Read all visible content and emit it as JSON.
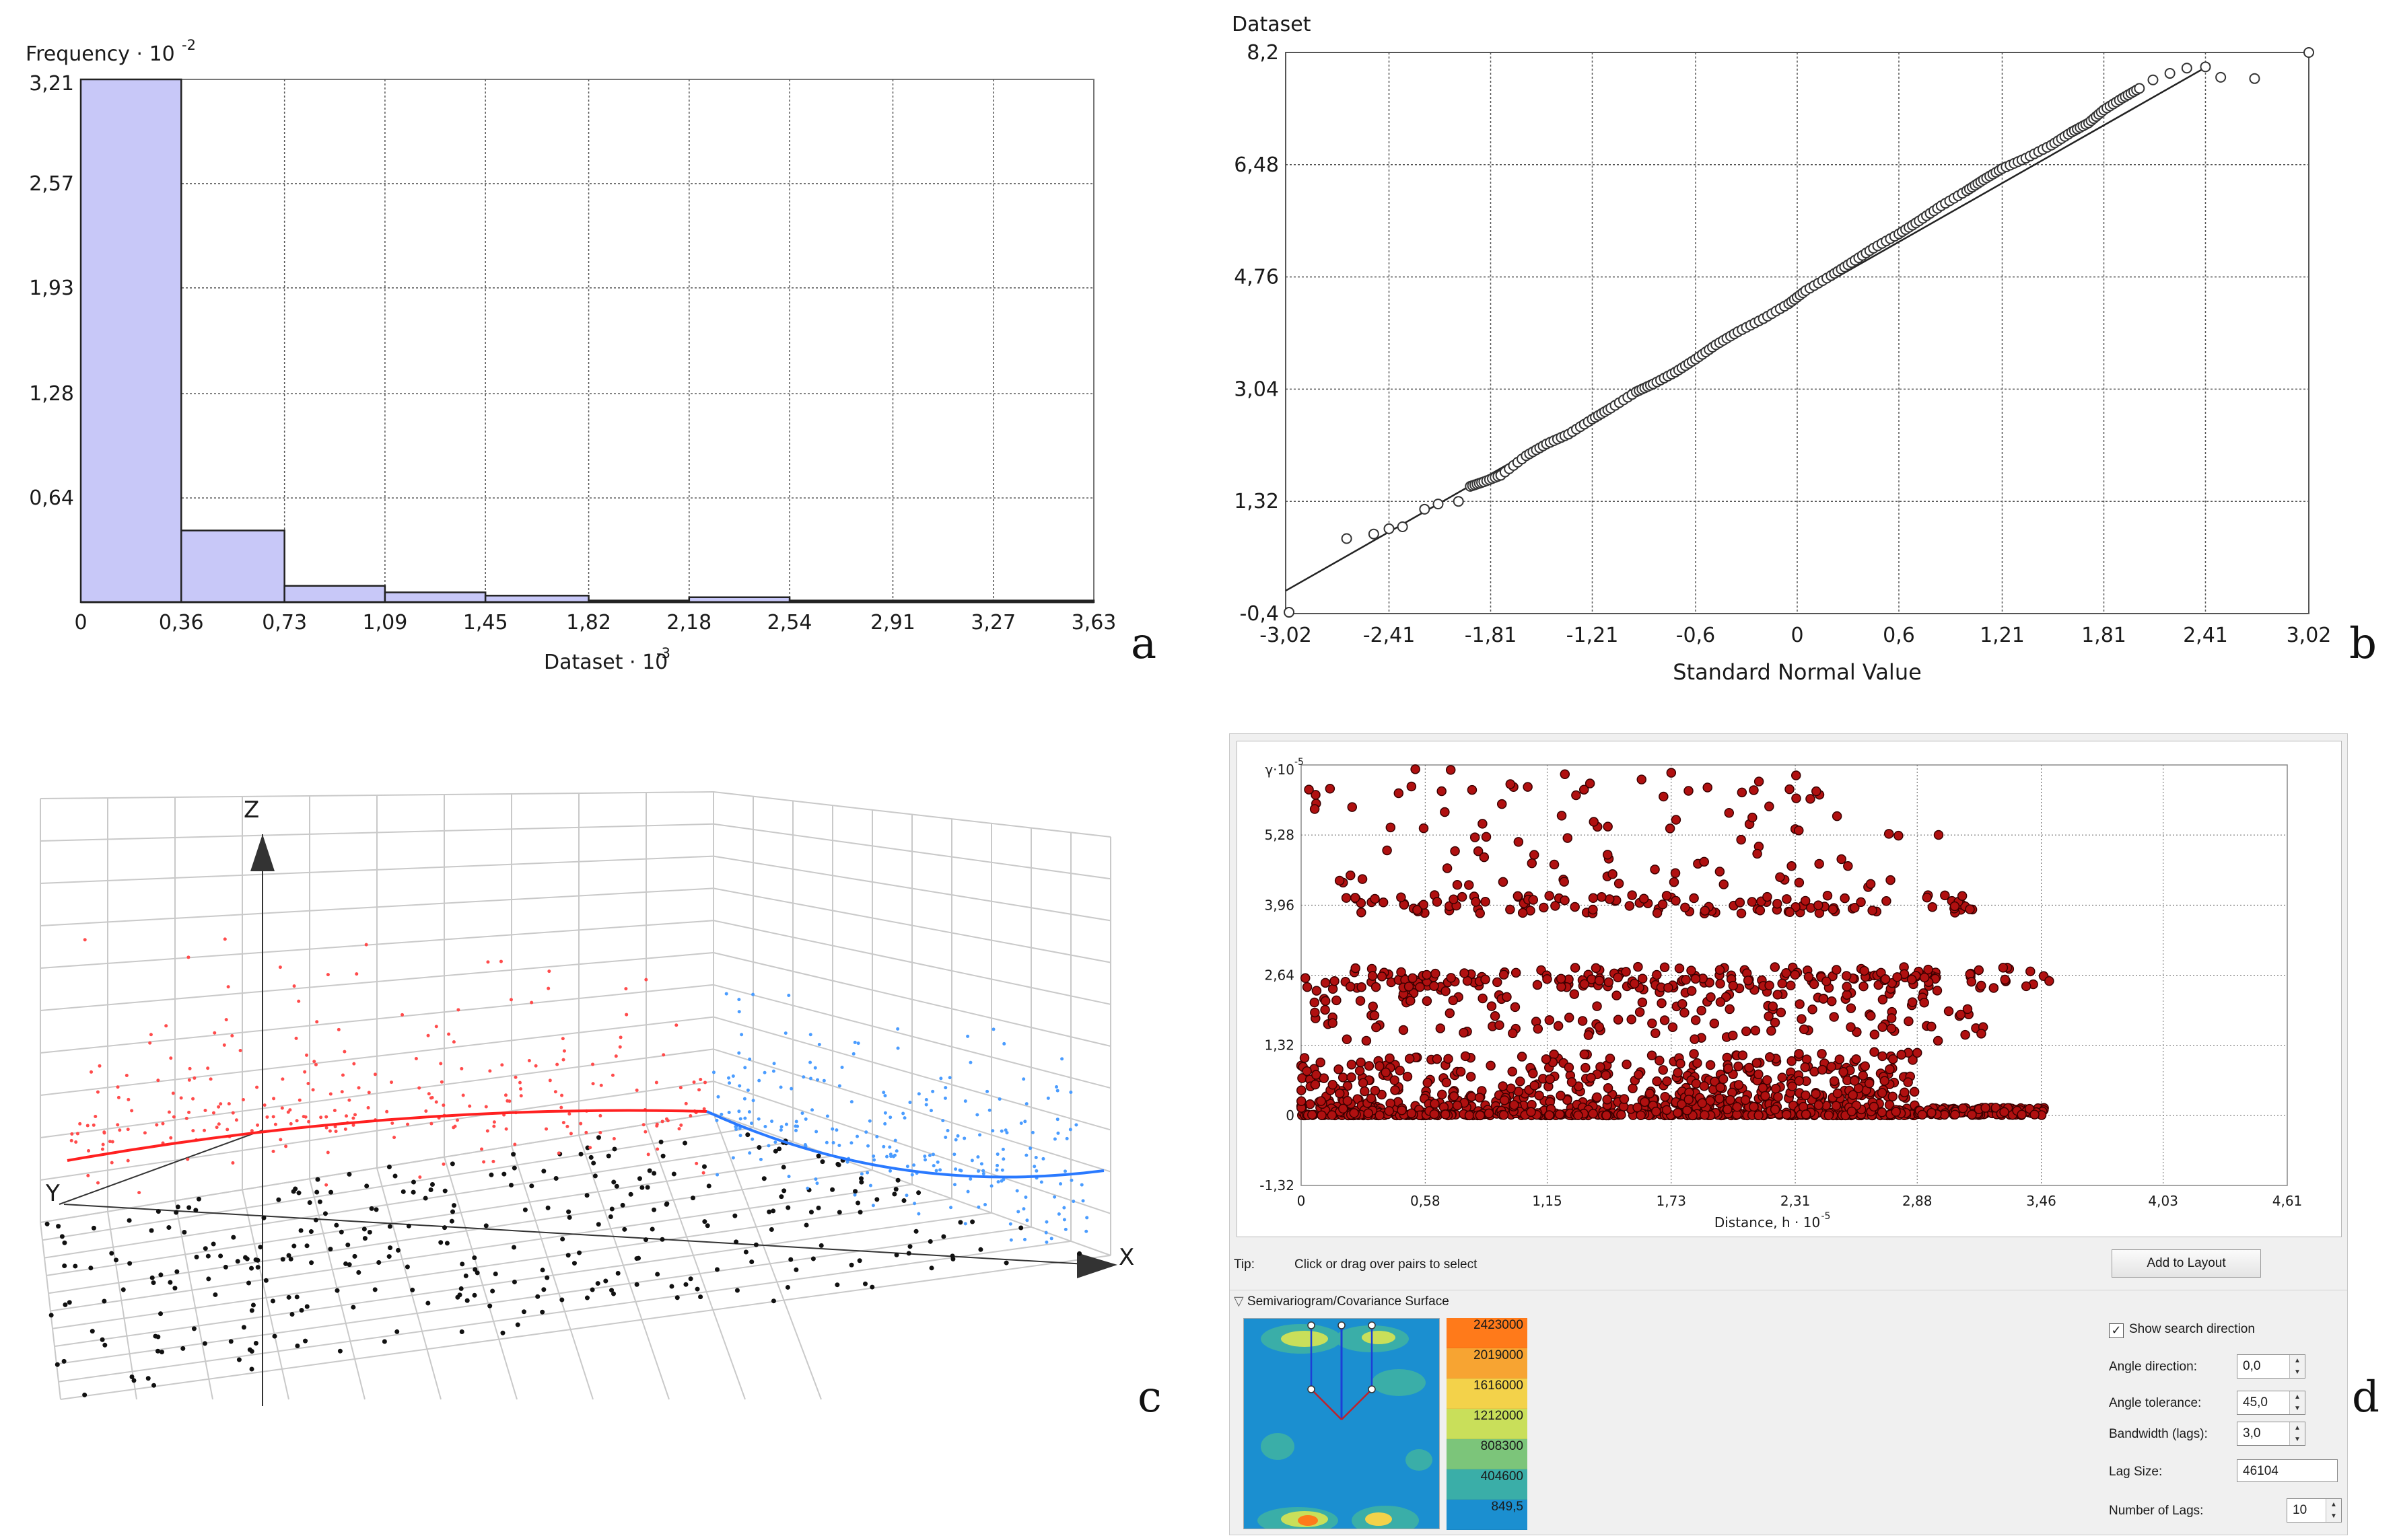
{
  "panels": {
    "a": "a",
    "b": "b",
    "c": "c",
    "d": "d"
  },
  "chart_data": [
    {
      "id": "a",
      "type": "bar",
      "chart_subtype": "histogram",
      "ylabel": "Frequency",
      "ylabel_exp": "-2",
      "xlabel": "Dataset",
      "xlabel_exp": "-3",
      "x_ticks": [
        "0",
        "0,36",
        "0,73",
        "1,09",
        "1,45",
        "1,82",
        "2,18",
        "2,54",
        "2,91",
        "3,27",
        "3,63"
      ],
      "y_ticks": [
        "0,64",
        "1,28",
        "1,93",
        "2,57",
        "3,21"
      ],
      "x_tick_values": [
        0,
        0.36,
        0.73,
        1.09,
        1.45,
        1.82,
        2.18,
        2.54,
        2.91,
        3.27,
        3.63
      ],
      "y_tick_values": [
        0.64,
        1.28,
        1.93,
        2.57,
        3.21
      ],
      "bin_edges": [
        0,
        0.36,
        0.73,
        1.09,
        1.45,
        1.82,
        2.18,
        2.54,
        2.91,
        3.27,
        3.63
      ],
      "values": [
        3.21,
        0.44,
        0.1,
        0.06,
        0.04,
        0.01,
        0.03,
        0.01,
        0.01,
        0.01
      ],
      "xlim": [
        0,
        3.63
      ],
      "ylim": [
        0,
        3.21
      ],
      "bar_color": "#c8c8f8",
      "grid": true
    },
    {
      "id": "b",
      "type": "scatter",
      "chart_subtype": "normal-qq-plot",
      "ylabel": "Dataset",
      "xlabel": "Standard Normal Value",
      "x_ticks": [
        "-3,02",
        "-2,41",
        "-1,81",
        "-1,21",
        "-0,6",
        "0",
        "0,6",
        "1,21",
        "1,81",
        "2,41",
        "3,02"
      ],
      "y_ticks": [
        "-0,4",
        "1,32",
        "3,04",
        "4,76",
        "6,48",
        "8,2"
      ],
      "x_tick_values": [
        -3.02,
        -2.41,
        -1.81,
        -1.21,
        -0.6,
        0,
        0.6,
        1.21,
        1.81,
        2.41,
        3.02
      ],
      "y_tick_values": [
        -0.4,
        1.32,
        3.04,
        4.76,
        6.48,
        8.2
      ],
      "xlim": [
        -3.02,
        3.02
      ],
      "ylim": [
        -0.4,
        8.2
      ],
      "reference_line": [
        [
          -3.02,
          -0.05
        ],
        [
          2.41,
          7.97
        ]
      ],
      "points": [
        [
          -3.0,
          -0.38
        ],
        [
          -2.66,
          0.75
        ],
        [
          -2.5,
          0.82
        ],
        [
          -2.41,
          0.9
        ],
        [
          -2.33,
          0.93
        ],
        [
          -2.2,
          1.2
        ],
        [
          -2.12,
          1.28
        ],
        [
          -2.0,
          1.32
        ],
        [
          -1.93,
          1.55
        ],
        [
          -1.85,
          1.62
        ],
        [
          -1.75,
          1.72
        ],
        [
          -1.6,
          2.02
        ],
        [
          -1.48,
          2.2
        ],
        [
          -1.35,
          2.35
        ],
        [
          -1.21,
          2.58
        ],
        [
          -1.1,
          2.75
        ],
        [
          -0.95,
          3.0
        ],
        [
          -0.85,
          3.12
        ],
        [
          -0.72,
          3.3
        ],
        [
          -0.6,
          3.5
        ],
        [
          -0.48,
          3.72
        ],
        [
          -0.35,
          3.92
        ],
        [
          -0.2,
          4.12
        ],
        [
          -0.05,
          4.35
        ],
        [
          0.05,
          4.55
        ],
        [
          0.2,
          4.78
        ],
        [
          0.32,
          4.98
        ],
        [
          0.45,
          5.2
        ],
        [
          0.6,
          5.42
        ],
        [
          0.72,
          5.62
        ],
        [
          0.85,
          5.85
        ],
        [
          1.0,
          6.08
        ],
        [
          1.1,
          6.25
        ],
        [
          1.21,
          6.42
        ],
        [
          1.35,
          6.58
        ],
        [
          1.5,
          6.78
        ],
        [
          1.62,
          6.98
        ],
        [
          1.72,
          7.12
        ],
        [
          1.81,
          7.32
        ],
        [
          1.92,
          7.5
        ],
        [
          2.02,
          7.65
        ],
        [
          2.1,
          7.78
        ],
        [
          2.2,
          7.88
        ],
        [
          2.3,
          7.96
        ],
        [
          2.41,
          7.98
        ],
        [
          2.5,
          7.82
        ],
        [
          2.7,
          7.8
        ],
        [
          3.02,
          8.2
        ]
      ],
      "grid": true
    },
    {
      "id": "c",
      "type": "scatter",
      "chart_subtype": "3d-trend-analysis",
      "axis_labels": {
        "z": "Z",
        "y": "Y",
        "x": "X"
      },
      "series": [
        {
          "color": "#111111",
          "role": "data-points-xy-plane"
        },
        {
          "color": "#ff4b4b",
          "role": "projection-yz"
        },
        {
          "color": "#4a9cff",
          "role": "projection-xz"
        }
      ],
      "trend_colors": {
        "yz": "#ff2020",
        "xz": "#2979ff"
      },
      "grid": true
    },
    {
      "id": "d",
      "type": "scatter",
      "chart_subtype": "semivariogram-cloud",
      "ylabel": "γ",
      "ylabel_exp": "-5",
      "xlabel": "Distance, h",
      "xlabel_exp": "-5",
      "x_ticks": [
        "0",
        "0,58",
        "1,15",
        "1,73",
        "2,31",
        "2,88",
        "3,46",
        "4,03",
        "4,61"
      ],
      "y_ticks": [
        "-1,32",
        "0",
        "1,32",
        "2,64",
        "3,96",
        "5,28"
      ],
      "x_tick_values": [
        0,
        0.58,
        1.15,
        1.73,
        2.31,
        2.88,
        3.46,
        4.03,
        4.61
      ],
      "y_tick_values": [
        -1.32,
        0,
        1.32,
        2.64,
        3.96,
        5.28
      ],
      "xlim": [
        0,
        4.61
      ],
      "ylim": [
        -1.32,
        6.6
      ],
      "point_color": "#b01010",
      "point_edge": "#3a0000",
      "grid": true
    }
  ],
  "semivariogram_ui": {
    "tip_label": "Tip:",
    "tip_text": "Click or drag over pairs to select",
    "add_to_layout": "Add to Layout",
    "surface_header": "Semivariogram/Covariance Surface",
    "legend_values": [
      "2423000",
      "2019000",
      "1616000",
      "1212000",
      "808300",
      "404600",
      "849,5"
    ],
    "legend_colors": [
      "#ff7a1a",
      "#f7a432",
      "#f3d24a",
      "#c9df5a",
      "#7cc57a",
      "#3aaea8",
      "#1b8fd0"
    ],
    "show_search_direction": "Show search direction",
    "show_search_checked": true,
    "angle_direction_label": "Angle direction:",
    "angle_direction_value": "0,0",
    "angle_tolerance_label": "Angle tolerance:",
    "angle_tolerance_value": "45,0",
    "bandwidth_label": "Bandwidth (lags):",
    "bandwidth_value": "3,0",
    "lag_size_label": "Lag Size:",
    "lag_size_value": "46104",
    "num_lags_label": "Number of Lags:",
    "num_lags_value": "10"
  }
}
